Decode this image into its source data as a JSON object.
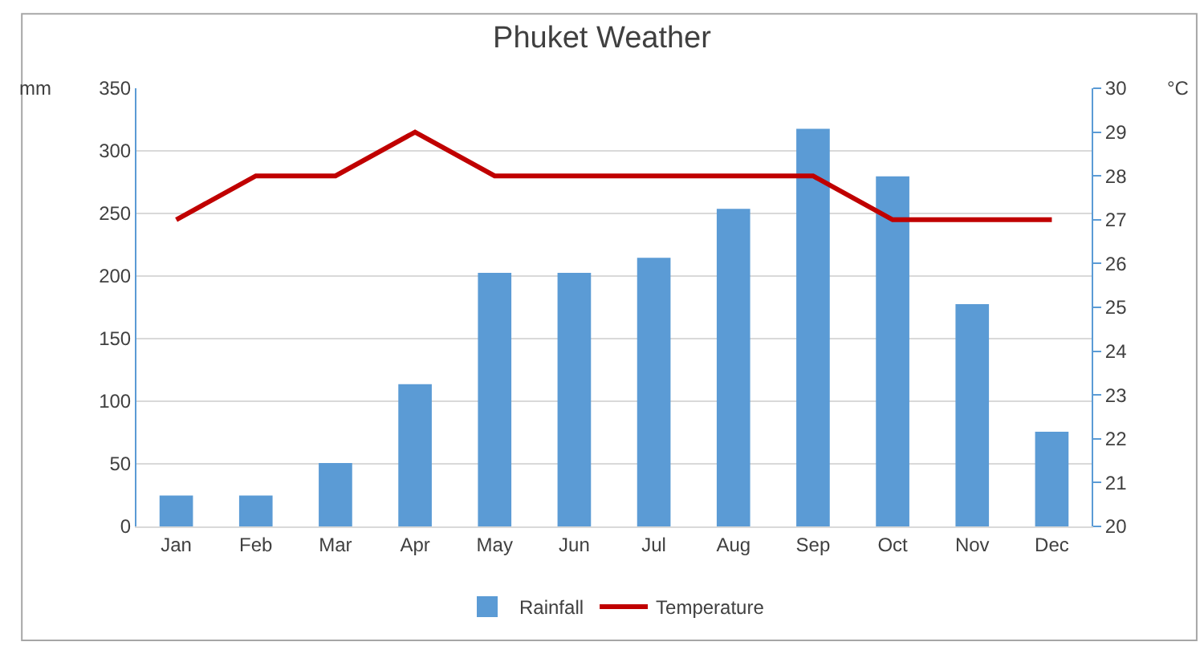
{
  "chart_data": {
    "type": "bar",
    "title": "Phuket Weather",
    "categories": [
      "Jan",
      "Feb",
      "Mar",
      "Apr",
      "May",
      "Jun",
      "Jul",
      "Aug",
      "Sep",
      "Oct",
      "Nov",
      "Dec"
    ],
    "series": [
      {
        "name": "Rainfall",
        "color": "#5b9bd5",
        "values": [
          24,
          24,
          50,
          113,
          202,
          202,
          214,
          253,
          317,
          279,
          177,
          75
        ]
      },
      {
        "name": "Temperature",
        "type": "line",
        "axis": "y2",
        "color": "#c00000",
        "values": [
          27,
          28,
          28,
          29,
          28,
          28,
          28,
          28,
          28,
          27,
          27,
          27
        ]
      }
    ],
    "ylabel": "mm",
    "y2label": "°C",
    "ylim": [
      0,
      350
    ],
    "yticks": [
      0,
      50,
      100,
      150,
      200,
      250,
      300,
      350
    ],
    "y2lim": [
      20,
      30
    ],
    "y2ticks": [
      20,
      21,
      22,
      23,
      24,
      25,
      26,
      27,
      28,
      29,
      30
    ],
    "grid": "y",
    "legend": "bottom",
    "marker": "none",
    "line_style": "solid"
  }
}
